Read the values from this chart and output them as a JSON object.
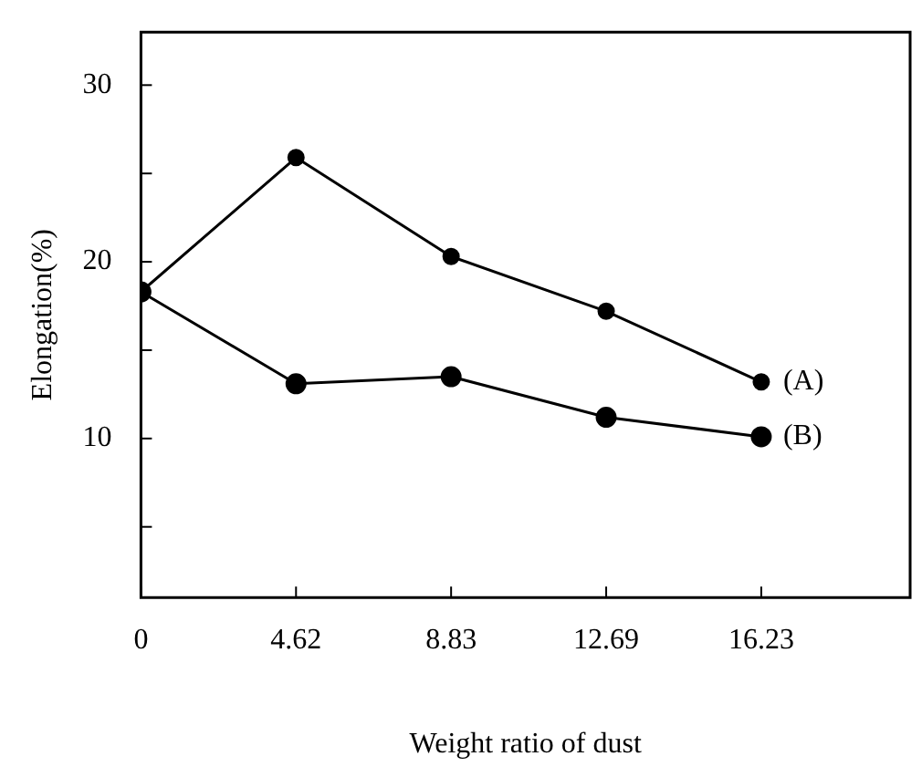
{
  "chart_data": {
    "type": "line",
    "xlabel": "Weight ratio of dust",
    "ylabel": "Elongation(%)",
    "categories": [
      "0",
      "4.62",
      "8.83",
      "12.69",
      "16.23"
    ],
    "series": [
      {
        "name": "(A)",
        "color": "#000000",
        "values": [
          18.3,
          25.9,
          20.3,
          17.2,
          13.2
        ]
      },
      {
        "name": "(B)",
        "color": "#000000",
        "values": [
          18.3,
          13.1,
          13.5,
          11.2,
          10.1
        ]
      }
    ],
    "ylim": [
      1,
      33
    ],
    "yticks": [
      {
        "value": 5,
        "label": null
      },
      10,
      {
        "value": 15,
        "label": null
      },
      20,
      {
        "value": 25,
        "label": null
      },
      30
    ],
    "marker": "circle",
    "line_style": "solid",
    "grid": false,
    "legend": false
  }
}
